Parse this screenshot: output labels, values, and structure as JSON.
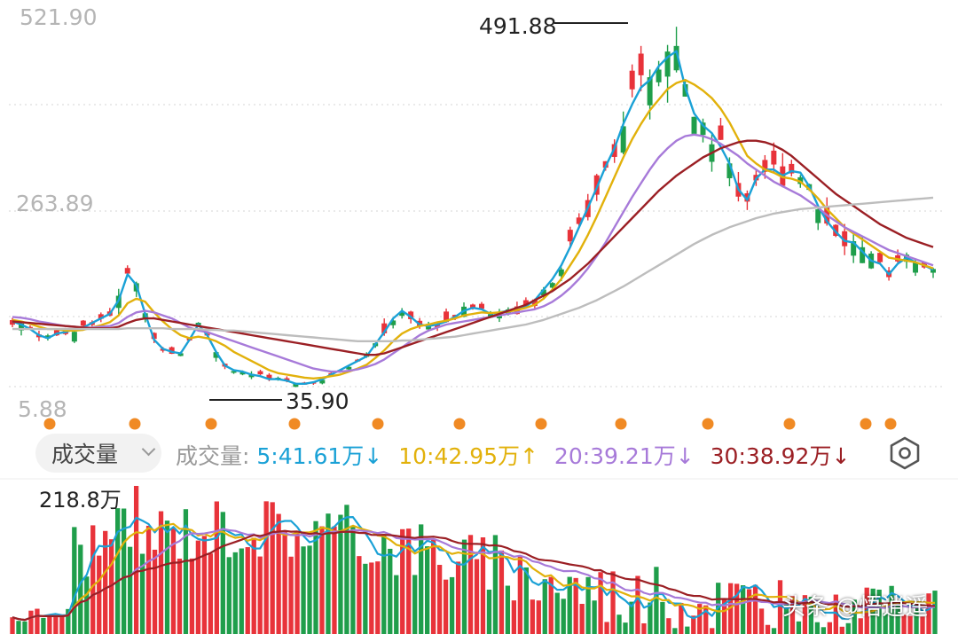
{
  "price_chart": {
    "y_labels": {
      "top": "521.90",
      "mid": "263.89",
      "bottom": "5.88"
    },
    "high_annotation": "491.88",
    "low_annotation": "35.90"
  },
  "volume_panel": {
    "selector_label": "成交量",
    "legend": {
      "title": "成交量:",
      "ma5": "5:41.61万↓",
      "ma10": "10:42.95万↑",
      "ma20": "20:39.21万↓",
      "ma30": "30:38.92万↓"
    },
    "max_label": "218.8万"
  },
  "watermark": "头条 @悟逍遥",
  "colors": {
    "up": "#e8333a",
    "down": "#1f9e4b",
    "ma5": "#1aa1d6",
    "ma10": "#e2b10b",
    "ma20": "#a77ad9",
    "ma30": "#9b1f24",
    "ma_long": "#bdbdbd",
    "event_dot": "#f08a24"
  },
  "icons": {
    "settings": "hexagon-settings-icon",
    "dropdown": "chevron-down-icon"
  },
  "chart_data": {
    "type": "candlestick",
    "price_axis": {
      "ylim": [
        5.88,
        521.9
      ],
      "tick_labels": [
        "521.90",
        "263.89",
        "5.88"
      ]
    },
    "annotations": [
      {
        "label": "491.88",
        "kind": "high"
      },
      {
        "label": "35.90",
        "kind": "low"
      }
    ],
    "ma_series": [
      {
        "period": 5,
        "values": [
          122,
          118,
          112,
          104,
          100,
          106,
          108,
          112,
          114,
          120,
          126,
          132,
          150,
          184,
          170,
          132,
          98,
          86,
          82,
          80,
          98,
          118,
          104,
          82,
          64,
          58,
          56,
          52,
          50,
          46,
          46,
          44,
          40,
          40,
          42,
          46,
          52,
          58,
          64,
          70,
          76,
          92,
          108,
          126,
          136,
          128,
          118,
          116,
          118,
          122,
          128,
          136,
          140,
          138,
          132,
          134,
          136,
          140,
          142,
          150,
          164,
          178,
          196,
          220,
          246,
          272,
          298,
          326,
          350,
          382,
          408,
          430,
          440,
          458,
          470,
          478,
          430,
          396,
          380,
          370,
          352,
          330,
          296,
          282,
          310,
          322,
          322,
          314,
          320,
          318,
          300,
          274,
          254,
          240,
          228,
          226,
          214,
          202,
          198,
          184,
          198,
          206,
          200,
          196,
          190
        ]
      },
      {
        "period": 10,
        "values": [
          124,
          122,
          119,
          115,
          112,
          112,
          110,
          110,
          111,
          114,
          117,
          121,
          130,
          146,
          152,
          148,
          134,
          122,
          112,
          104,
          100,
          102,
          100,
          96,
          90,
          82,
          76,
          70,
          64,
          58,
          54,
          52,
          50,
          48,
          47,
          48,
          50,
          52,
          56,
          60,
          65,
          74,
          84,
          96,
          106,
          112,
          116,
          118,
          121,
          123,
          126,
          130,
          132,
          134,
          133,
          134,
          135,
          137,
          140,
          144,
          152,
          164,
          178,
          196,
          214,
          236,
          260,
          286,
          312,
          338,
          362,
          382,
          400,
          414,
          428,
          436,
          440,
          434,
          426,
          416,
          402,
          384,
          362,
          340,
          330,
          322,
          318,
          312,
          310,
          306,
          296,
          284,
          270,
          258,
          246,
          238,
          230,
          222,
          214,
          206,
          204,
          202,
          200,
          196,
          192
        ]
      },
      {
        "period": 20,
        "values": [
          128,
          127,
          125,
          122,
          120,
          118,
          116,
          115,
          114,
          114,
          115,
          116,
          120,
          128,
          134,
          136,
          134,
          130,
          126,
          120,
          114,
          110,
          108,
          104,
          100,
          96,
          92,
          88,
          84,
          80,
          76,
          72,
          68,
          64,
          60,
          58,
          56,
          56,
          57,
          59,
          62,
          66,
          72,
          80,
          88,
          96,
          104,
          110,
          114,
          118,
          120,
          122,
          124,
          126,
          128,
          130,
          132,
          134,
          136,
          138,
          142,
          148,
          156,
          166,
          178,
          192,
          208,
          226,
          246,
          266,
          286,
          304,
          322,
          338,
          350,
          360,
          366,
          368,
          366,
          362,
          356,
          348,
          340,
          330,
          322,
          314,
          306,
          300,
          294,
          288,
          280,
          272,
          262,
          254,
          246,
          240,
          234,
          228,
          222,
          216,
          212,
          208,
          204,
          200,
          196
        ]
      },
      {
        "period": 30,
        "values": [
          122,
          121,
          120,
          119,
          118,
          117,
          116,
          115,
          114,
          113,
          113,
          113,
          115,
          120,
          124,
          126,
          126,
          124,
          122,
          120,
          118,
          116,
          114,
          112,
          110,
          108,
          106,
          104,
          102,
          100,
          98,
          96,
          94,
          92,
          90,
          88,
          86,
          84,
          82,
          80,
          78,
          78,
          80,
          84,
          88,
          92,
          96,
          100,
          104,
          108,
          112,
          116,
          120,
          124,
          128,
          132,
          136,
          140,
          144,
          150,
          156,
          162,
          170,
          178,
          188,
          198,
          210,
          222,
          234,
          246,
          258,
          270,
          282,
          294,
          304,
          314,
          322,
          330,
          338,
          344,
          350,
          354,
          358,
          360,
          360,
          358,
          354,
          348,
          340,
          330,
          320,
          310,
          300,
          290,
          282,
          274,
          266,
          258,
          250,
          244,
          238,
          232,
          228,
          224,
          220
        ]
      },
      {
        "period": 60,
        "values": [
          112,
          112,
          112,
          112,
          112,
          112,
          112,
          112,
          112,
          112,
          112,
          112,
          112,
          113,
          113,
          113,
          113,
          113,
          112,
          112,
          112,
          112,
          111,
          111,
          110,
          110,
          109,
          108,
          107,
          106,
          105,
          104,
          103,
          102,
          101,
          100,
          99,
          98,
          97,
          96,
          96,
          96,
          96,
          96,
          97,
          97,
          98,
          99,
          100,
          101,
          102,
          104,
          106,
          108,
          110,
          112,
          114,
          116,
          118,
          121,
          124,
          128,
          132,
          136,
          140,
          145,
          150,
          156,
          162,
          168,
          175,
          182,
          189,
          196,
          203,
          210,
          217,
          224,
          230,
          236,
          241,
          246,
          250,
          254,
          258,
          261,
          264,
          266,
          268,
          270,
          271,
          272,
          273,
          274,
          275,
          276,
          277,
          278,
          279,
          280,
          281,
          282,
          283,
          284,
          285
        ]
      }
    ],
    "volume": {
      "max_label": "218.8万",
      "ma_legend": {
        "5": "41.61万",
        "10": "42.95万",
        "20": "39.21万",
        "30": "38.92万"
      }
    }
  }
}
